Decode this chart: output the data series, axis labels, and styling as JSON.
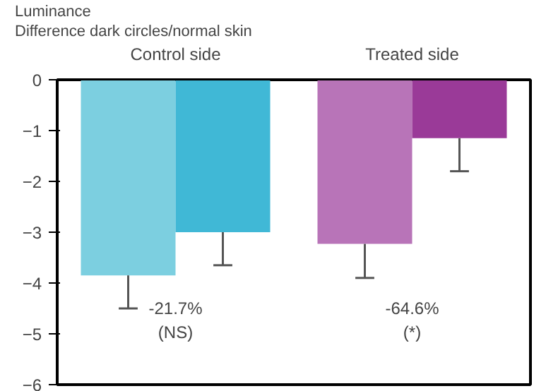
{
  "chart_data": {
    "type": "bar",
    "title": "Luminance",
    "subtitle": "Difference dark circles/normal skin",
    "categories": [
      "Control side",
      "Treated side"
    ],
    "series": [
      {
        "colors": [
          "#7ccfe0",
          "#b874b8"
        ],
        "values": [
          -3.85,
          -3.23
        ],
        "errors": [
          [
            -4.5,
            -3.85
          ],
          [
            -3.9,
            -3.23
          ]
        ]
      },
      {
        "colors": [
          "#40b8d6",
          "#9a3a98"
        ],
        "values": [
          -3.0,
          -1.15
        ],
        "errors": [
          [
            -3.65,
            -3.0
          ],
          [
            -1.8,
            -1.15
          ]
        ]
      }
    ],
    "ylim": [
      -6,
      0
    ],
    "yticks": [
      -6,
      -5,
      -4,
      -3,
      -2,
      -1,
      0
    ],
    "grid": false,
    "annotations": [
      "-21.7%\n(NS)",
      "-64.6%\n(*)"
    ]
  }
}
